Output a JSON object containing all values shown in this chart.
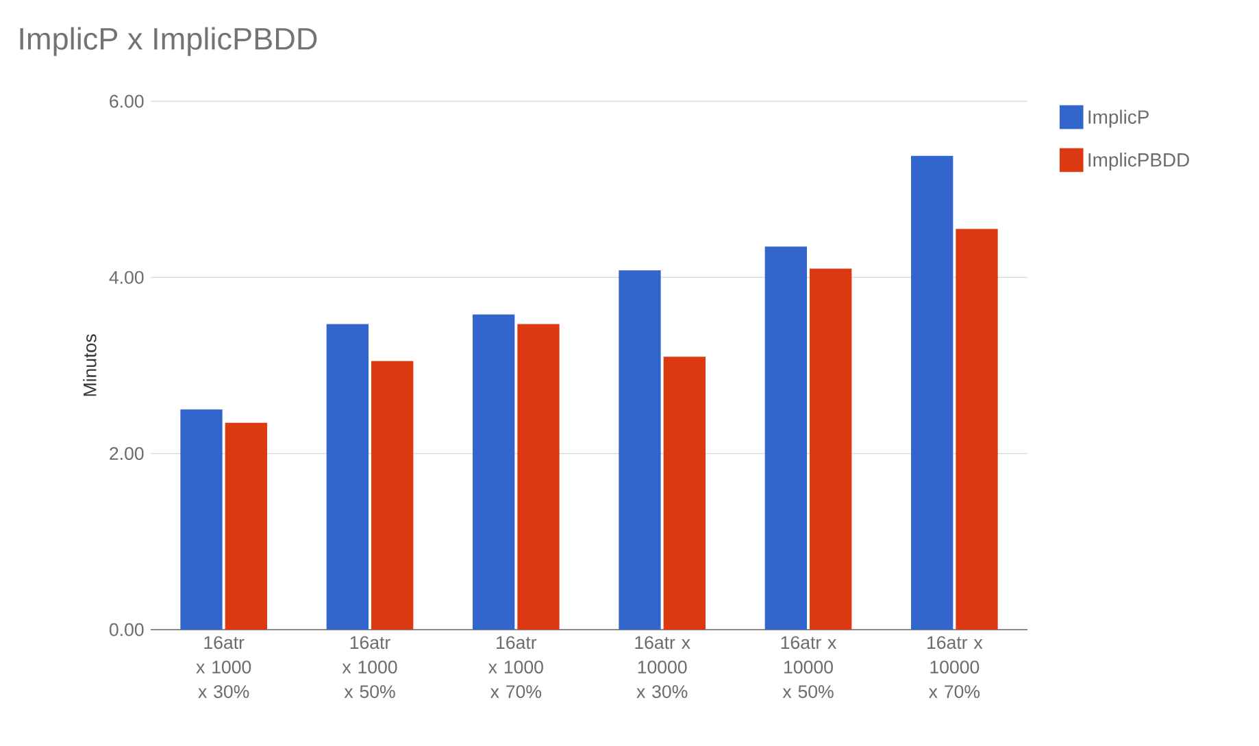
{
  "chart_data": {
    "type": "bar",
    "title": "ImplicP x ImplicPBDD",
    "ylabel": "Minutos",
    "categories": [
      "16atr x 1000 x 30%",
      "16atr x 1000 x 50%",
      "16atr x 1000 x 70%",
      "16atr x 10000 x 30%",
      "16atr x 10000 x 50%",
      "16atr x 10000 x 70%"
    ],
    "series": [
      {
        "name": "ImplicP",
        "color": "#3366cc",
        "values": [
          2.5,
          3.47,
          3.58,
          4.08,
          4.35,
          5.38
        ]
      },
      {
        "name": "ImplicPBDD",
        "color": "#dc3912",
        "values": [
          2.35,
          3.05,
          3.47,
          3.1,
          4.1,
          4.55
        ]
      }
    ],
    "ylim": [
      0,
      6
    ],
    "yticks": [
      {
        "value": 0,
        "label": "0.00"
      },
      {
        "value": 2,
        "label": "2.00"
      },
      {
        "value": 4,
        "label": "4.00"
      },
      {
        "value": 6,
        "label": "6.00"
      }
    ],
    "grid": "y",
    "legend": "top right"
  }
}
